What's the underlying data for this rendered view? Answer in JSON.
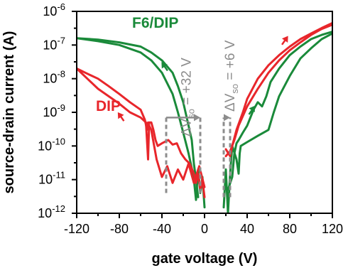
{
  "chart_data": {
    "type": "line",
    "title": "",
    "xlabel": "gate voltage (V)",
    "ylabel": "source-drain current (A)",
    "xlim": [
      -120,
      120
    ],
    "ylim": [
      1e-12,
      1e-06
    ],
    "yscale": "log",
    "grid": false,
    "x_ticks": [
      -120,
      -80,
      -40,
      0,
      40,
      80,
      120
    ],
    "x_tick_labels": [
      "-120",
      "-80",
      "-40",
      "0",
      "40",
      "80",
      "120"
    ],
    "y_ticks": [
      1e-12,
      1e-11,
      1e-10,
      1e-09,
      1e-08,
      1e-07,
      1e-06
    ],
    "y_tick_labels": [
      {
        "base": "10",
        "exp": "-12"
      },
      {
        "base": "10",
        "exp": "-11"
      },
      {
        "base": "10",
        "exp": "-10"
      },
      {
        "base": "10",
        "exp": "-9"
      },
      {
        "base": "10",
        "exp": "-8"
      },
      {
        "base": "10",
        "exp": "-7"
      },
      {
        "base": "10",
        "exp": "-6"
      }
    ],
    "series": [
      {
        "name": "F6/DIP",
        "color": "#1a8a3a",
        "curves": [
          [
            [
              -120,
              1.6e-07
            ],
            [
              -100,
              1.3e-07
            ],
            [
              -80,
              1e-07
            ],
            [
              -60,
              6e-08
            ],
            [
              -50,
              3.5e-08
            ],
            [
              -40,
              1.5e-08
            ],
            [
              -30,
              3.5e-09
            ],
            [
              -25,
              1e-09
            ],
            [
              -20,
              2.5e-10
            ],
            [
              -15,
              6e-11
            ],
            [
              -12,
              2.2e-11
            ],
            [
              -10,
              1e-11
            ],
            [
              -8,
              2.5e-12
            ],
            [
              -6,
              2e-11
            ],
            [
              -4,
              4e-12
            ],
            [
              -2,
              1.2e-11
            ],
            [
              0,
              1.5e-12
            ]
          ],
          [
            [
              -120,
              1.6e-07
            ],
            [
              -100,
              1.45e-07
            ],
            [
              -80,
              1.2e-07
            ],
            [
              -60,
              9e-08
            ],
            [
              -50,
              6e-08
            ],
            [
              -40,
              3.5e-08
            ],
            [
              -30,
              1.5e-08
            ],
            [
              -25,
              6e-09
            ],
            [
              -20,
              2e-09
            ],
            [
              -15,
              4e-10
            ],
            [
              -12,
              1.5e-10
            ],
            [
              -10,
              3e-11
            ],
            [
              -8,
              1e-11
            ],
            [
              -6,
              3e-12
            ]
          ],
          [
            [
              18,
              1.5e-12
            ],
            [
              20,
              2e-11
            ],
            [
              22,
              1e-12
            ],
            [
              24,
              1.5e-11
            ],
            [
              26,
              1e-10
            ],
            [
              30,
              4e-11
            ],
            [
              32,
              1.5e-11
            ],
            [
              33,
              6e-11
            ],
            [
              34,
              1e-10
            ],
            [
              40,
              1.3e-10
            ],
            [
              50,
              2e-10
            ],
            [
              60,
              3e-10
            ],
            [
              65,
              1e-09
            ],
            [
              70,
              3e-09
            ],
            [
              80,
              1.2e-08
            ],
            [
              90,
              4e-08
            ],
            [
              100,
              8e-08
            ],
            [
              110,
              1.5e-07
            ],
            [
              120,
              2.2e-07
            ]
          ],
          [
            [
              22,
              5e-12
            ],
            [
              26,
              1.2e-11
            ],
            [
              28,
              6e-11
            ],
            [
              30,
              1.2e-10
            ],
            [
              32,
              1.5e-10
            ],
            [
              36,
              2.5e-10
            ],
            [
              40,
              4e-10
            ],
            [
              46,
              1.2e-09
            ],
            [
              50,
              2e-09
            ],
            [
              54,
              1.5e-09
            ],
            [
              58,
              3e-09
            ],
            [
              62,
              8e-09
            ],
            [
              70,
              2e-08
            ],
            [
              80,
              5e-08
            ],
            [
              90,
              9e-08
            ],
            [
              100,
              1.5e-07
            ],
            [
              110,
              2e-07
            ],
            [
              120,
              2.5e-07
            ]
          ]
        ]
      },
      {
        "name": "DIP",
        "color": "#e8262b",
        "curves": [
          [
            [
              -120,
              2e-08
            ],
            [
              -110,
              1e-08
            ],
            [
              -100,
              5e-09
            ],
            [
              -90,
              3e-09
            ],
            [
              -80,
              1.8e-09
            ],
            [
              -70,
              1e-09
            ],
            [
              -60,
              7e-10
            ],
            [
              -55,
              5e-10
            ],
            [
              -53,
              4e-11
            ],
            [
              -52,
              5e-10
            ],
            [
              -50,
              5e-10
            ],
            [
              -48,
              3e-10
            ],
            [
              -46,
              1.5e-10
            ],
            [
              -44,
              1e-10
            ],
            [
              -40,
              1.2e-10
            ],
            [
              -34,
              1.5e-10
            ],
            [
              -30,
              1.1e-10
            ],
            [
              -26,
              1.2e-10
            ],
            [
              -22,
              6e-11
            ],
            [
              -18,
              4e-11
            ],
            [
              -14,
              3e-11
            ],
            [
              -10,
              1.5e-11
            ],
            [
              -8,
              8e-12
            ],
            [
              -6,
              1.5e-11
            ],
            [
              -4,
              5e-12
            ],
            [
              -2,
              1e-11
            ],
            [
              0,
              3e-12
            ]
          ],
          [
            [
              -120,
              2e-08
            ],
            [
              -110,
              1.4e-08
            ],
            [
              -100,
              1e-08
            ],
            [
              -90,
              6e-09
            ],
            [
              -80,
              3.5e-09
            ],
            [
              -70,
              2e-09
            ],
            [
              -60,
              1.2e-09
            ],
            [
              -56,
              6e-10
            ],
            [
              -54,
              3e-10
            ],
            [
              -53,
              5e-10
            ],
            [
              -52,
              4e-10
            ],
            [
              -50,
              3e-10
            ],
            [
              -45,
              4e-11
            ],
            [
              -40,
              1.2e-11
            ],
            [
              -35,
              2.5e-11
            ],
            [
              -30,
              8e-12
            ],
            [
              -25,
              2e-11
            ],
            [
              -20,
              1e-11
            ],
            [
              -15,
              3e-11
            ],
            [
              -10,
              8e-12
            ],
            [
              -5,
              2.5e-11
            ],
            [
              0,
              6e-12
            ]
          ],
          [
            [
              20,
              8e-11
            ],
            [
              24,
              5e-11
            ],
            [
              26,
              1e-10
            ],
            [
              30,
              3e-10
            ],
            [
              36,
              1e-09
            ],
            [
              40,
              2.5e-09
            ],
            [
              50,
              1e-08
            ],
            [
              60,
              2.5e-08
            ],
            [
              70,
              5e-08
            ],
            [
              80,
              9e-08
            ],
            [
              90,
              1.5e-07
            ],
            [
              100,
              2.2e-07
            ],
            [
              110,
              3.2e-07
            ],
            [
              120,
              4.5e-07
            ]
          ],
          [
            [
              20,
              5e-11
            ],
            [
              24,
              7e-11
            ],
            [
              28,
              1.5e-10
            ],
            [
              32,
              4e-10
            ],
            [
              40,
              1.5e-09
            ],
            [
              50,
              5e-09
            ],
            [
              60,
              1.5e-08
            ],
            [
              70,
              3.5e-08
            ],
            [
              80,
              7e-08
            ],
            [
              90,
              1.2e-07
            ],
            [
              100,
              2e-07
            ],
            [
              110,
              3e-07
            ],
            [
              120,
              4e-07
            ]
          ]
        ]
      }
    ],
    "annotations": [
      {
        "kind": "series-label",
        "series": 0,
        "text": "F6/DIP",
        "color": "#1a8a3a",
        "x": -68,
        "y": 3.3e-07
      },
      {
        "kind": "series-label",
        "series": 1,
        "text": "DIP",
        "color": "#e8262b",
        "x": -102,
        "y": 1.1e-09
      },
      {
        "kind": "rotated-label",
        "text": "ΔV",
        "sub": "so",
        "rest": " = +32 V",
        "color": "#8c8c8c",
        "x": -13,
        "y": 1.9e-10
      },
      {
        "kind": "rotated-label",
        "text": "ΔV",
        "sub": "so",
        "rest": " = +6 V",
        "color": "#8c8c8c",
        "x": 28,
        "y": 1.05e-09
      }
    ],
    "threshold_markers": [
      {
        "color": "#8c8c8c",
        "x1": -36,
        "x2": -4,
        "y_low": 4e-12,
        "y_high": 7e-10
      },
      {
        "color": "#8c8c8c",
        "x1": 18,
        "x2": 24,
        "y_low": 3e-12,
        "y_high": 7e-10
      }
    ],
    "sweep_arrows": [
      {
        "color": "#1a8a3a",
        "x": -37,
        "y": 2.2e-08,
        "direction": "up-left"
      },
      {
        "color": "#e8262b",
        "x": -78,
        "y": 7e-10,
        "direction": "up-left"
      },
      {
        "color": "#e8262b",
        "x": 75,
        "y": 1.3e-07,
        "direction": "up-right"
      },
      {
        "color": "#1a8a3a",
        "x": 44,
        "y": 1.1e-09,
        "direction": "up-right"
      }
    ]
  }
}
